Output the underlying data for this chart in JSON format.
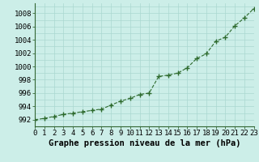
{
  "x": [
    0,
    1,
    2,
    3,
    4,
    5,
    6,
    7,
    8,
    9,
    10,
    11,
    12,
    13,
    14,
    15,
    16,
    17,
    18,
    19,
    20,
    21,
    22,
    23
  ],
  "y": [
    992.0,
    992.2,
    992.5,
    992.8,
    993.0,
    993.2,
    993.4,
    993.6,
    994.2,
    994.8,
    995.2,
    995.8,
    996.0,
    998.5,
    998.7,
    999.0,
    999.8,
    1001.2,
    1001.9,
    1003.8,
    1004.4,
    1006.1,
    1007.3,
    1008.7
  ],
  "line_color": "#2d6a2d",
  "marker_color": "#2d6a2d",
  "bg_color": "#cceee8",
  "grid_color": "#aad8d0",
  "xlabel": "Graphe pression niveau de la mer (hPa)",
  "xlabel_fontsize": 7.5,
  "ylabel_ticks": [
    992,
    994,
    996,
    998,
    1000,
    1002,
    1004,
    1006,
    1008
  ],
  "xlim": [
    0,
    23
  ],
  "ylim": [
    991.0,
    1009.5
  ],
  "xticks": [
    0,
    1,
    2,
    3,
    4,
    5,
    6,
    7,
    8,
    9,
    10,
    11,
    12,
    13,
    14,
    15,
    16,
    17,
    18,
    19,
    20,
    21,
    22,
    23
  ],
  "tick_fontsize": 6.5,
  "spine_color": "#336633"
}
